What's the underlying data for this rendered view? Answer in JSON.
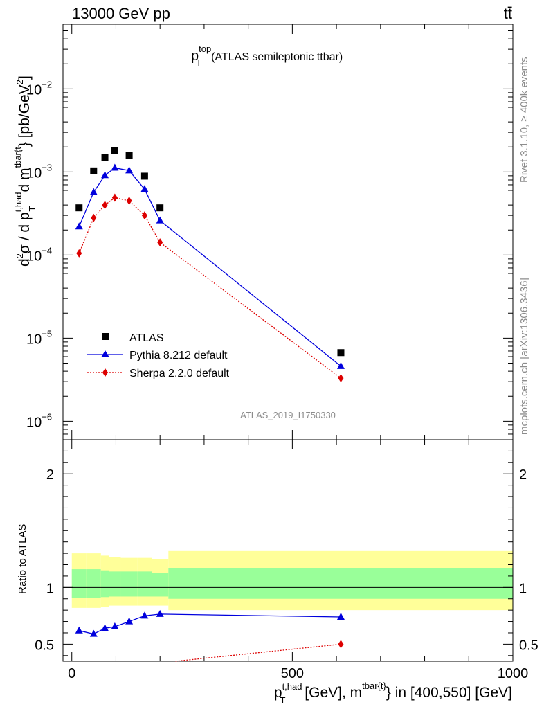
{
  "header": {
    "energy_label": "13000 GeV pp",
    "process_label": "tt̄"
  },
  "side_labels": {
    "rivet": "Rivet 3.1.10, ≥ 400k events",
    "mcplots": "mcplots.cern.ch [arXiv:1306.3436]"
  },
  "watermark": "ATLAS_2019_I1750330",
  "chart_data": [
    {
      "type": "scatter",
      "panel": "main",
      "title": "p_T^top (ATLAS semileptonic ttbar)",
      "title_main": "p",
      "title_sub": "T",
      "title_sup": "top",
      "title_rest": "(ATLAS semileptonic ttbar)",
      "ylabel": "d²σ / d p_T^{t,had} d m^{tbar{t}} [pb/GeV²]",
      "yscale": "log",
      "ylim": [
        6e-07,
        0.06
      ],
      "xlim": [
        -20,
        1000
      ],
      "ytick_labels": [
        {
          "value": 1e-06,
          "base": "10",
          "exp": "−6"
        },
        {
          "value": 1e-05,
          "base": "10",
          "exp": "−5"
        },
        {
          "value": 0.0001,
          "base": "10",
          "exp": "−4"
        },
        {
          "value": 0.001,
          "base": "10",
          "exp": "−3"
        },
        {
          "value": 0.01,
          "base": "10",
          "exp": "−2"
        }
      ],
      "series": [
        {
          "name": "ATLAS",
          "color": "#000000",
          "marker": "square",
          "x": [
            16.5,
            49.5,
            75,
            97.5,
            130,
            165,
            200,
            610
          ],
          "y": [
            0.00037,
            0.00103,
            0.00148,
            0.0018,
            0.00158,
            0.00089,
            0.00037,
            6.7e-06
          ]
        },
        {
          "name": "Pythia 8.212 default",
          "color": "#0000dd",
          "marker": "triangle",
          "line": "solid",
          "x": [
            16.5,
            49.5,
            75,
            97.5,
            130,
            165,
            200,
            610
          ],
          "y": [
            0.00022,
            0.00057,
            0.00091,
            0.00112,
            0.00104,
            0.00062,
            0.00026,
            4.6e-06
          ]
        },
        {
          "name": "Sherpa 2.2.0 default",
          "color": "#dd0000",
          "marker": "diamond",
          "line": "dotted",
          "x": [
            16.5,
            49.5,
            75,
            97.5,
            130,
            165,
            200,
            610
          ],
          "y": [
            0.000105,
            0.00028,
            0.0004,
            0.00049,
            0.00045,
            0.0003,
            0.000142,
            3.3e-06
          ]
        }
      ],
      "legend": {
        "placement": "bottom-left",
        "entries": [
          "ATLAS",
          "Pythia 8.212 default",
          "Sherpa 2.2.0 default"
        ]
      }
    },
    {
      "type": "scatter",
      "panel": "ratio",
      "ylabel": "Ratio to ATLAS",
      "ylim": [
        0.35,
        2.3
      ],
      "xlim": [
        -20,
        1000
      ],
      "ytick_labels": [
        "0.5",
        "1",
        "2"
      ],
      "ytick_values": [
        0.5,
        1,
        2
      ],
      "xlabel": "p_T^{t,had} [GeV], m^{tbar{t}} in [400,550] [GeV]",
      "xlabel_main": "p",
      "xlabel_sub": "T",
      "xlabel_sup": "t,had",
      "xlabel_mid": "[GeV], m",
      "xlabel_sup2": "tbar{t}",
      "xlabel_tail": "in [400,550] [GeV]",
      "xtick_labels": [
        "0",
        "500",
        "1000"
      ],
      "xtick_values": [
        0,
        500,
        1000
      ],
      "bands": {
        "edges": [
          0,
          33,
          66,
          84,
          111,
          149,
          181,
          219,
          1000
        ],
        "yellow_low": [
          0.82,
          0.82,
          0.83,
          0.84,
          0.84,
          0.84,
          0.84,
          0.8
        ],
        "yellow_high": [
          1.3,
          1.3,
          1.28,
          1.27,
          1.26,
          1.26,
          1.25,
          1.32
        ],
        "green_low": [
          0.91,
          0.91,
          0.915,
          0.92,
          0.92,
          0.92,
          0.92,
          0.9
        ],
        "green_high": [
          1.16,
          1.16,
          1.15,
          1.14,
          1.14,
          1.14,
          1.13,
          1.17
        ],
        "yellow_color": "#ffff99",
        "green_color": "#99ff99"
      },
      "series": [
        {
          "name": "Pythia 8.212 default",
          "color": "#0000dd",
          "marker": "triangle",
          "line": "solid",
          "x": [
            16.5,
            49.5,
            75,
            97.5,
            130,
            165,
            200,
            610
          ],
          "y": [
            0.62,
            0.59,
            0.64,
            0.655,
            0.7,
            0.75,
            0.765,
            0.74
          ],
          "err": [
            0.02,
            0.015,
            0.015,
            0.015,
            0.015,
            0.015,
            0.02,
            0.03
          ]
        },
        {
          "name": "Sherpa 2.2.0 default",
          "color": "#dd0000",
          "marker": "diamond",
          "line": "dotted",
          "x": [
            235,
            610
          ],
          "y": [
            0.35,
            0.5
          ],
          "draw_marker": [
            false,
            true
          ]
        }
      ]
    }
  ]
}
